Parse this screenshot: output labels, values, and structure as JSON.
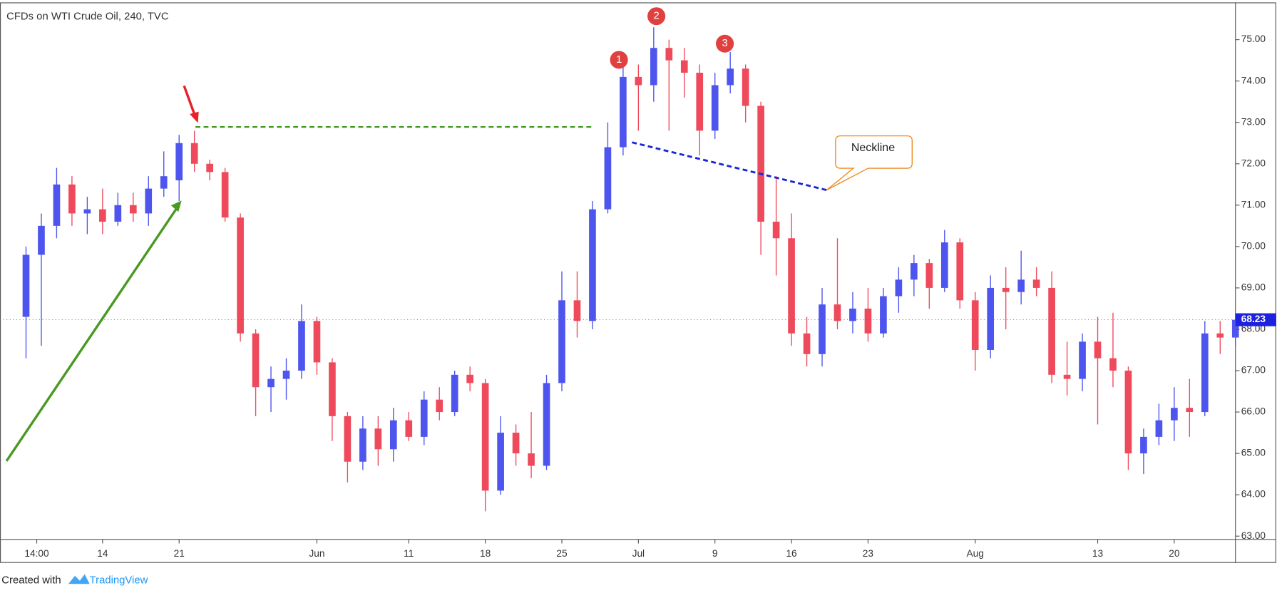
{
  "chart_data": {
    "type": "candlestick",
    "title": "CFDs on WTI Crude Oil, 240, TVC",
    "open": [
      68.3,
      69.8,
      70.5,
      71.5,
      70.8,
      70.9,
      70.6,
      71.0,
      70.8,
      71.4,
      71.6,
      72.5,
      72.0,
      71.8,
      70.7,
      67.9,
      66.6,
      66.8,
      67.0,
      68.2,
      67.2,
      65.9,
      64.8,
      65.6,
      65.1,
      65.8,
      65.4,
      66.3,
      66.0,
      66.9,
      66.7,
      64.1,
      65.5,
      65.0,
      64.7,
      66.7,
      68.7,
      68.2,
      70.9,
      72.4,
      74.1,
      73.9,
      74.8,
      74.5,
      74.2,
      72.8,
      73.9,
      74.3,
      73.4,
      70.6,
      70.2,
      67.9,
      67.4,
      68.6,
      68.2,
      68.5,
      67.9,
      68.8,
      69.2,
      69.6,
      69.0,
      70.1,
      68.7,
      67.5,
      69.0,
      68.9,
      69.2,
      69.0,
      66.9,
      66.8,
      67.7,
      67.3,
      67.0,
      65.0,
      65.4,
      65.8,
      66.1,
      66.0,
      67.9,
      67.8
    ],
    "high": [
      70.0,
      70.8,
      71.9,
      71.7,
      71.2,
      71.4,
      71.3,
      71.3,
      71.7,
      72.3,
      72.7,
      72.8,
      72.1,
      71.9,
      70.8,
      68.0,
      67.1,
      67.3,
      68.6,
      68.3,
      67.3,
      66.0,
      65.9,
      65.9,
      66.1,
      66.0,
      66.5,
      66.6,
      67.0,
      67.1,
      66.8,
      65.9,
      65.7,
      66.0,
      66.9,
      69.4,
      69.4,
      71.1,
      73.0,
      74.4,
      74.4,
      75.3,
      75.0,
      74.8,
      74.4,
      74.2,
      74.7,
      74.4,
      73.5,
      71.7,
      70.8,
      68.3,
      69.0,
      70.2,
      68.9,
      69.0,
      69.0,
      69.5,
      69.8,
      69.7,
      70.4,
      70.2,
      68.9,
      69.3,
      69.5,
      69.9,
      69.5,
      69.4,
      67.7,
      67.9,
      68.3,
      68.4,
      67.1,
      65.6,
      66.2,
      66.6,
      66.8,
      68.2,
      68.2,
      68.3
    ],
    "low": [
      67.3,
      67.6,
      70.2,
      70.5,
      70.3,
      70.3,
      70.5,
      70.6,
      70.5,
      71.2,
      71.1,
      71.8,
      71.6,
      70.6,
      67.7,
      65.9,
      66.0,
      66.3,
      66.8,
      66.9,
      65.3,
      64.3,
      64.6,
      64.7,
      64.8,
      65.3,
      65.2,
      65.8,
      65.9,
      66.5,
      63.6,
      64.0,
      64.7,
      64.4,
      64.6,
      66.5,
      67.8,
      68.0,
      70.8,
      72.2,
      72.8,
      73.5,
      72.8,
      73.6,
      72.2,
      72.6,
      73.7,
      73.0,
      69.8,
      69.3,
      67.6,
      67.1,
      67.1,
      68.0,
      67.9,
      67.7,
      67.8,
      68.4,
      68.8,
      68.5,
      68.9,
      68.5,
      67.0,
      67.3,
      68.0,
      68.6,
      68.8,
      66.7,
      66.4,
      66.5,
      65.7,
      66.6,
      64.6,
      64.5,
      65.2,
      65.3,
      65.4,
      65.9,
      67.4,
      67.6
    ],
    "close": [
      69.8,
      70.5,
      71.5,
      70.8,
      70.9,
      70.6,
      71.0,
      70.8,
      71.4,
      71.7,
      72.5,
      72.0,
      71.8,
      70.7,
      67.9,
      66.6,
      66.8,
      67.0,
      68.2,
      67.2,
      65.9,
      64.8,
      65.6,
      65.1,
      65.8,
      65.4,
      66.3,
      66.0,
      66.9,
      66.7,
      64.1,
      65.5,
      65.0,
      64.7,
      66.7,
      68.7,
      68.2,
      70.9,
      72.4,
      74.1,
      73.9,
      74.8,
      74.5,
      74.2,
      72.8,
      73.9,
      74.3,
      73.4,
      70.6,
      70.2,
      67.9,
      67.4,
      68.6,
      68.2,
      68.5,
      67.9,
      68.8,
      69.2,
      69.6,
      69.0,
      70.1,
      68.7,
      67.5,
      69.0,
      68.9,
      69.2,
      69.0,
      66.9,
      66.8,
      67.7,
      67.3,
      67.0,
      65.0,
      65.4,
      65.8,
      66.1,
      66.0,
      67.9,
      67.8,
      68.23
    ],
    "up_color": "#4e55ee",
    "down_color": "#ee4a5c",
    "xlim": [
      -1.7,
      79
    ],
    "xticks": [
      {
        "value": 0.7,
        "label": "14:00"
      },
      {
        "value": 5,
        "label": "14"
      },
      {
        "value": 10,
        "label": "21"
      },
      {
        "value": 19,
        "label": "Jun"
      },
      {
        "value": 25,
        "label": "11"
      },
      {
        "value": 30,
        "label": "18"
      },
      {
        "value": 35,
        "label": "25"
      },
      {
        "value": 40,
        "label": "Jul"
      },
      {
        "value": 45,
        "label": "9"
      },
      {
        "value": 50,
        "label": "16"
      },
      {
        "value": 55,
        "label": "23"
      },
      {
        "value": 62,
        "label": "Aug"
      },
      {
        "value": 70,
        "label": "13"
      },
      {
        "value": 75,
        "label": "20"
      }
    ],
    "ylim": [
      62.92,
      75.9
    ],
    "yticks": [
      {
        "value": 63,
        "label": "63.00"
      },
      {
        "value": 64,
        "label": "64.00"
      },
      {
        "value": 65,
        "label": "65.00"
      },
      {
        "value": 66,
        "label": "66.00"
      },
      {
        "value": 67,
        "label": "67.00"
      },
      {
        "value": 68,
        "label": "68.00"
      },
      {
        "value": 69,
        "label": "69.00"
      },
      {
        "value": 70,
        "label": "70.00"
      },
      {
        "value": 71,
        "label": "71.00"
      },
      {
        "value": 72,
        "label": "72.00"
      },
      {
        "value": 73,
        "label": "73.00"
      },
      {
        "value": 74,
        "label": "74.00"
      },
      {
        "value": 75,
        "label": "75.00"
      }
    ],
    "last_price": 68.23,
    "grid": false,
    "markers": [
      "1",
      "2",
      "3"
    ],
    "callout": "Neckline",
    "footer": {
      "prefix": "Created with",
      "brand": "TradingView"
    }
  }
}
